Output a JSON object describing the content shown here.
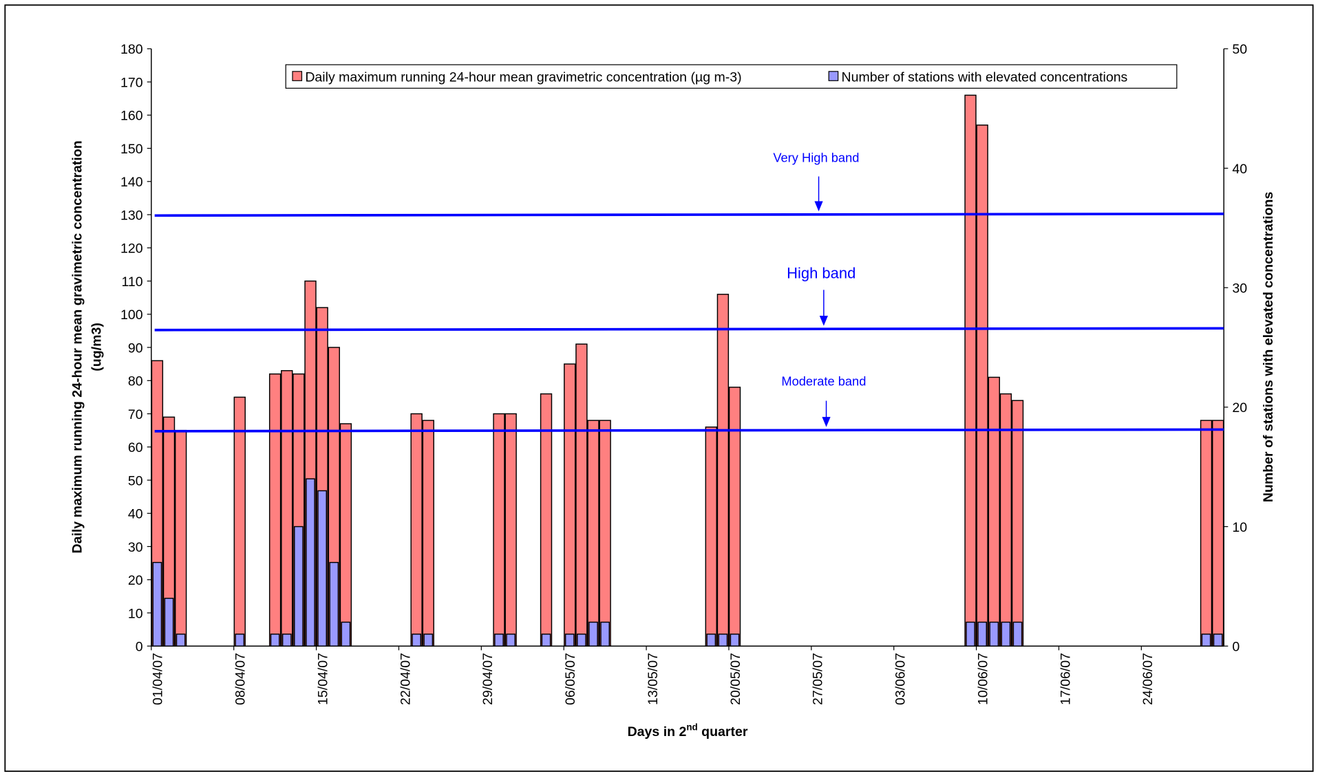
{
  "chart_data": {
    "type": "bar",
    "ylabel": [
      "Daily maximum running 24-hour mean gravimetric concentration",
      "(ug/m3)"
    ],
    "y2label": "Number of stations with elevated concentrations",
    "xlabel": [
      "Days in 2",
      "nd",
      " quarter"
    ],
    "x": [
      "01/04/07",
      "02/04/07",
      "03/04/07",
      "08/04/07",
      "11/04/07",
      "12/04/07",
      "13/04/07",
      "14/04/07",
      "15/04/07",
      "16/04/07",
      "17/04/07",
      "23/04/07",
      "24/04/07",
      "30/04/07",
      "01/05/07",
      "04/05/07",
      "06/05/07",
      "07/05/07",
      "08/05/07",
      "09/05/07",
      "18/05/07",
      "19/05/07",
      "20/05/07",
      "09/06/07",
      "10/06/07",
      "11/06/07",
      "12/06/07",
      "13/06/07",
      "29/06/07",
      "30/06/07"
    ],
    "xlim": [
      "01/04/07",
      "30/06/07"
    ],
    "xticks": [
      "01/04/07",
      "08/04/07",
      "15/04/07",
      "22/04/07",
      "29/04/07",
      "06/05/07",
      "13/05/07",
      "20/05/07",
      "27/05/07",
      "03/06/07",
      "10/06/07",
      "17/06/07",
      "24/06/07"
    ],
    "series": [
      {
        "name": "Daily maximum running 24-hour mean gravimetric concentration (µg m-3)",
        "color": "#ff8080",
        "values": [
          86,
          69,
          65,
          75,
          82,
          83,
          82,
          110,
          102,
          90,
          67,
          70,
          68,
          70,
          70,
          76,
          85,
          91,
          68,
          68,
          66,
          106,
          78,
          166,
          157,
          81,
          76,
          74,
          68,
          68
        ]
      },
      {
        "name": "Number of stations with elevated concentrations",
        "color": "#9999ff",
        "axis": "y2",
        "values": [
          7,
          4,
          1,
          1,
          1,
          1,
          10,
          14,
          13,
          7,
          2,
          1,
          1,
          1,
          1,
          1,
          1,
          1,
          2,
          2,
          1,
          1,
          1,
          2,
          2,
          2,
          2,
          2,
          1,
          1
        ]
      }
    ],
    "ylim": [
      0,
      180
    ],
    "yticks": [
      0,
      10,
      20,
      30,
      40,
      50,
      60,
      70,
      80,
      90,
      100,
      110,
      120,
      130,
      140,
      150,
      160,
      170,
      180
    ],
    "y2lim": [
      0,
      50
    ],
    "y2ticks": [
      0,
      10,
      20,
      30,
      40,
      50
    ],
    "bands": [
      {
        "label": "Very High band",
        "value": 130
      },
      {
        "label": "High band",
        "value": 95.5
      },
      {
        "label": "Moderate  band",
        "value": 65
      }
    ]
  }
}
